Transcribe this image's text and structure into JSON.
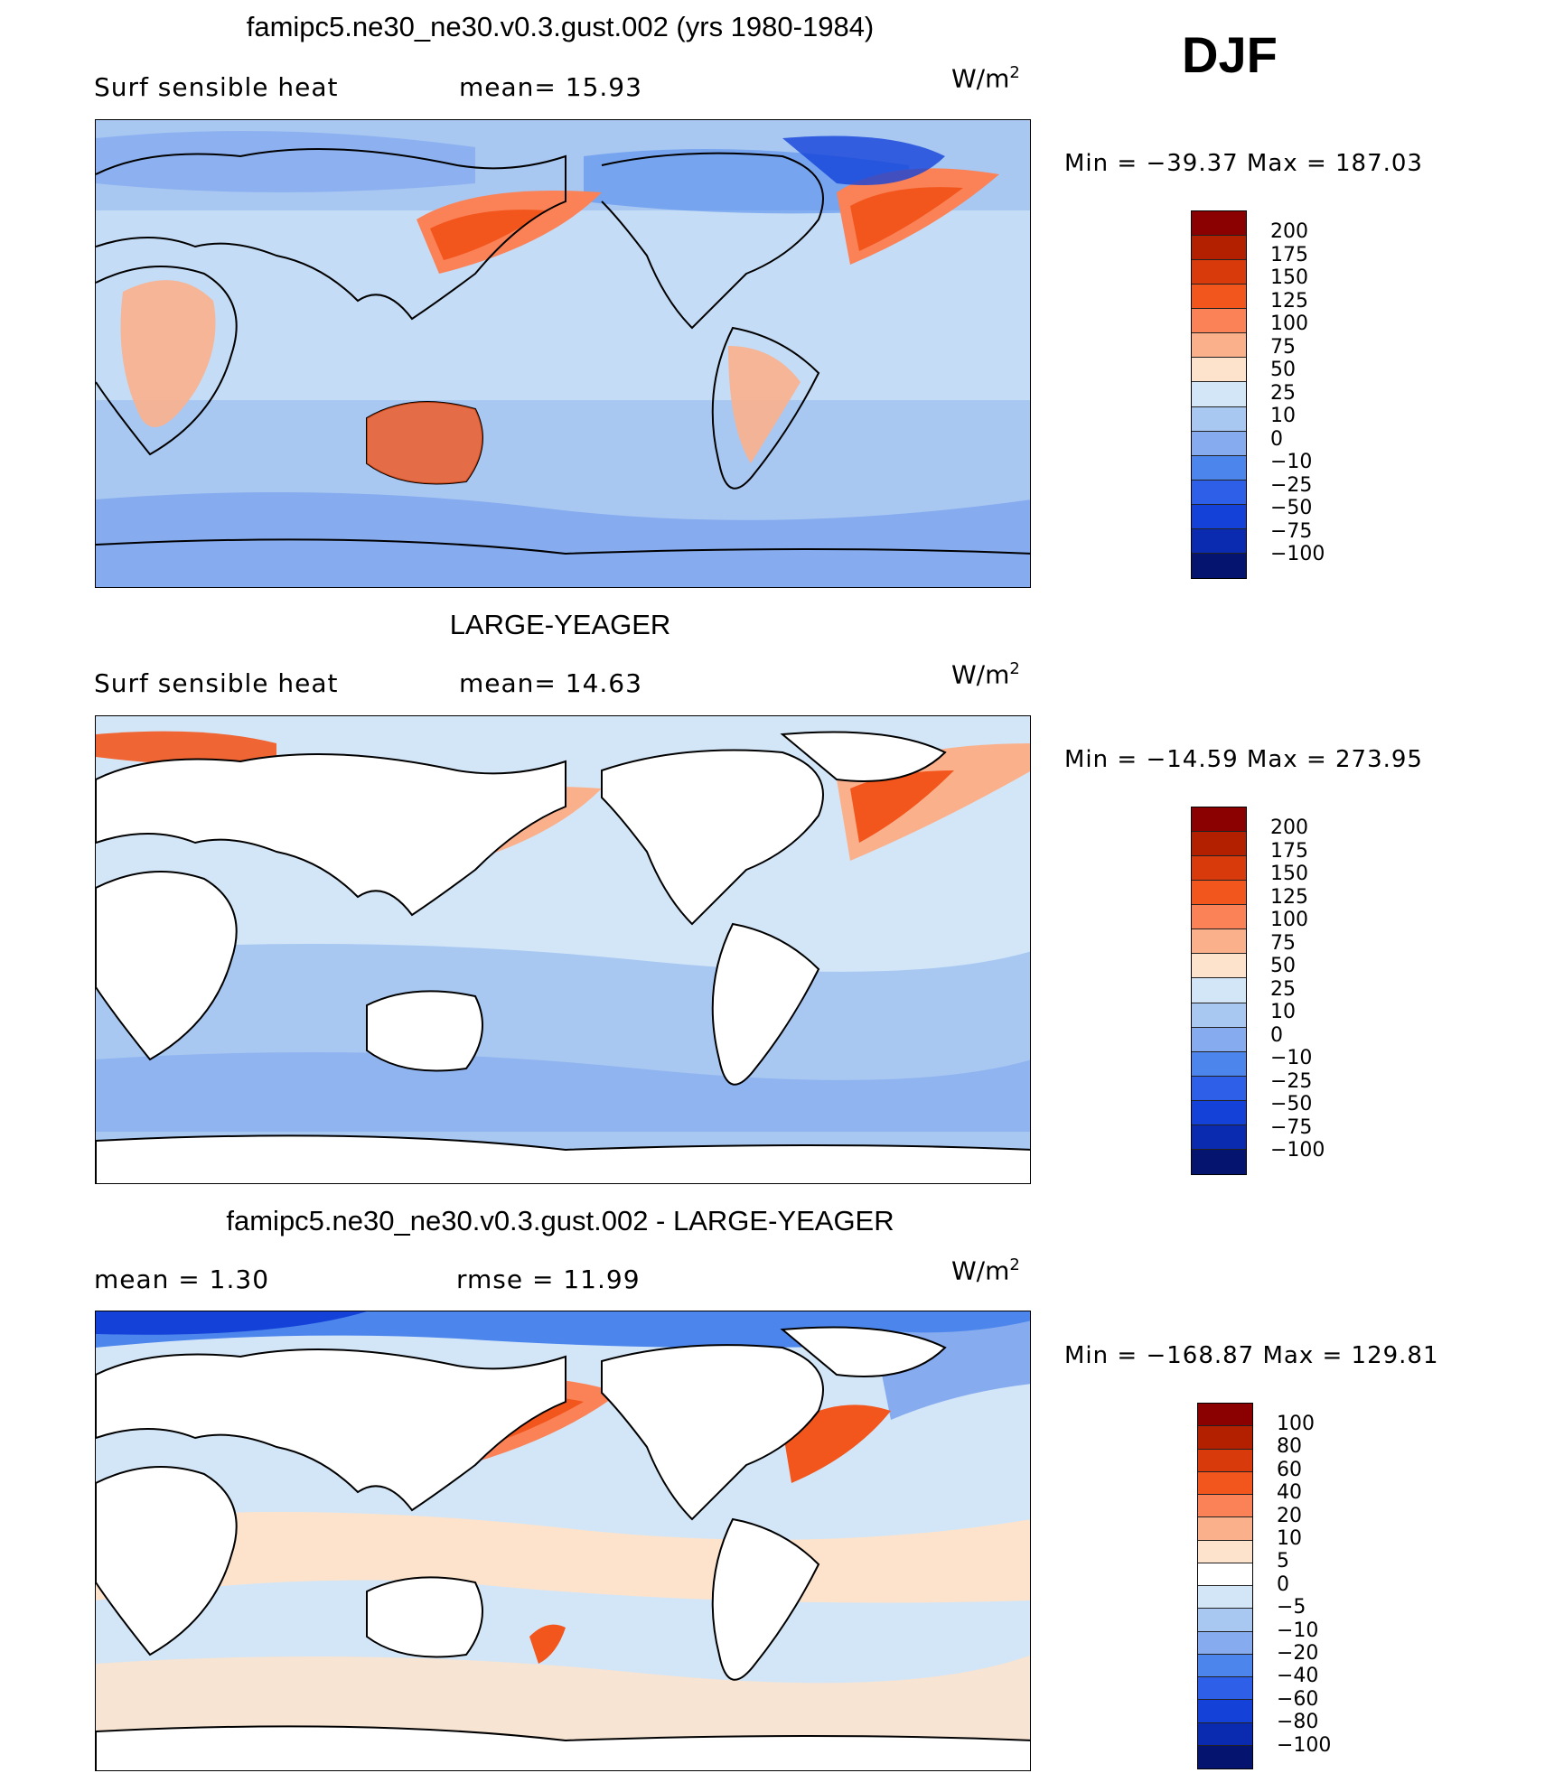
{
  "season": "DJF",
  "panels": [
    {
      "title": "famipc5.ne30_ne30.v0.3.gust.002 (yrs 1980-1984)",
      "left_label": "Surf  sensible  heat",
      "right_label": "mean=   15.93",
      "units_base": "W/m",
      "units_exp": "2",
      "min_max": "Min  =  −39.37  Max  =  187.03",
      "colorbar": {
        "colors": [
          "#8b0000",
          "#b22000",
          "#d83a0b",
          "#f2561d",
          "#fb8156",
          "#fbb08c",
          "#fde3cb",
          "#d3e6f8",
          "#a8c8f2",
          "#86abef",
          "#4c86ec",
          "#2d5fe8",
          "#1442d9",
          "#0a2bb0",
          "#05146f"
        ],
        "labels": [
          "200",
          "175",
          "150",
          "125",
          "100",
          "75",
          "50",
          "25",
          "10",
          "0",
          "−10",
          "−25",
          "−50",
          "−75",
          "−100"
        ]
      }
    },
    {
      "title": "LARGE-YEAGER",
      "left_label": "Surf  sensible  heat",
      "right_label": "mean=   14.63",
      "units_base": "W/m",
      "units_exp": "2",
      "min_max": "Min  =  −14.59  Max  =  273.95",
      "colorbar": {
        "colors": [
          "#8b0000",
          "#b22000",
          "#d83a0b",
          "#f2561d",
          "#fb8156",
          "#fbb08c",
          "#fde3cb",
          "#d3e6f8",
          "#a8c8f2",
          "#86abef",
          "#4c86ec",
          "#2d5fe8",
          "#1442d9",
          "#0a2bb0",
          "#05146f"
        ],
        "labels": [
          "200",
          "175",
          "150",
          "125",
          "100",
          "75",
          "50",
          "25",
          "10",
          "0",
          "−10",
          "−25",
          "−50",
          "−75",
          "−100"
        ]
      }
    },
    {
      "title": "famipc5.ne30_ne30.v0.3.gust.002 - LARGE-YEAGER",
      "left_label": "mean  =      1.30",
      "right_label": "rmse  =     11.99",
      "units_base": "W/m",
      "units_exp": "2",
      "min_max": "Min  =  −168.87  Max  =  129.81",
      "colorbar": {
        "colors": [
          "#8b0000",
          "#b22000",
          "#d83a0b",
          "#f2561d",
          "#fb8156",
          "#fbb08c",
          "#fde3cb",
          "#ffffff",
          "#d3e6f8",
          "#a8c8f2",
          "#86abef",
          "#4c86ec",
          "#2d5fe8",
          "#1442d9",
          "#0a2bb0",
          "#05146f"
        ],
        "labels": [
          "100",
          "80",
          "60",
          "40",
          "20",
          "10",
          "5",
          "0",
          "−5",
          "−10",
          "−20",
          "−40",
          "−60",
          "−80",
          "−100"
        ]
      }
    }
  ]
}
